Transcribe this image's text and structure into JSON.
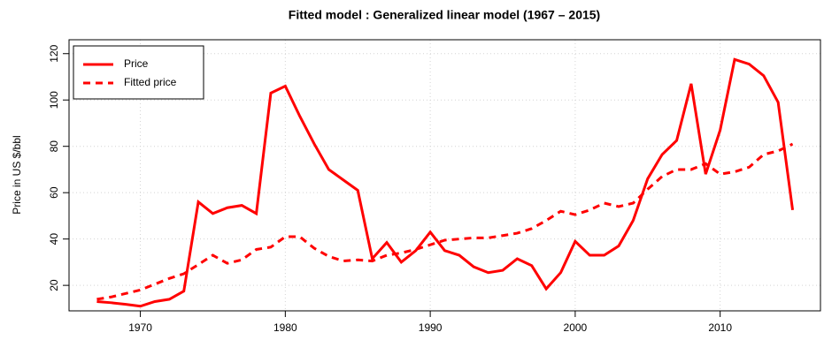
{
  "chart_data": {
    "type": "line",
    "title": "Fitted model : Generalized linear model (1967 – 2015)",
    "y_label": "Price in US $/bbl",
    "x": [
      1967,
      1968,
      1969,
      1970,
      1971,
      1972,
      1973,
      1974,
      1975,
      1976,
      1977,
      1978,
      1979,
      1980,
      1981,
      1982,
      1983,
      1984,
      1985,
      1986,
      1987,
      1988,
      1989,
      1990,
      1991,
      1992,
      1993,
      1994,
      1995,
      1996,
      1997,
      1998,
      1999,
      2000,
      2001,
      2002,
      2003,
      2004,
      2005,
      2006,
      2007,
      2008,
      2009,
      2010,
      2011,
      2012,
      2013,
      2014,
      2015
    ],
    "series": [
      {
        "name": "Price",
        "color": "#ff0000",
        "line_style": "solid",
        "values": [
          13,
          12.5,
          11.8,
          11,
          13,
          14,
          17.5,
          56,
          51,
          53.5,
          54.5,
          51,
          103,
          106,
          93,
          81,
          70,
          65.5,
          61,
          31.5,
          38.5,
          30,
          35,
          43,
          35,
          33,
          28,
          25.5,
          26.5,
          31.5,
          28.5,
          18.5,
          25.5,
          39,
          33,
          33,
          37,
          48,
          66,
          76.5,
          82.5,
          107,
          68,
          87,
          117.5,
          115.5,
          110.5,
          99,
          52.5
        ]
      },
      {
        "name": "Fitted price",
        "color": "#ff0000",
        "line_style": "dashed",
        "values": [
          14,
          15,
          16.5,
          18,
          20.5,
          23,
          25,
          29,
          33,
          29.5,
          31,
          35.5,
          36.5,
          41,
          41,
          36,
          32.5,
          30.5,
          31,
          30.5,
          33,
          34,
          35.5,
          37.5,
          39.5,
          40,
          40.5,
          40.5,
          41.5,
          42.5,
          44.5,
          48,
          52,
          50.5,
          52.5,
          55.5,
          54,
          55.5,
          61.5,
          67,
          70,
          70,
          72.5,
          68,
          69,
          71,
          76.5,
          78,
          81
        ]
      }
    ],
    "xlim": [
      1965.08,
      2016.92
    ],
    "xticks": [
      1970,
      1980,
      1990,
      2000,
      2010
    ],
    "ylim": [
      9,
      126
    ],
    "yticks": [
      20,
      40,
      60,
      80,
      100,
      120
    ],
    "grid": true,
    "legend": "top-left"
  }
}
